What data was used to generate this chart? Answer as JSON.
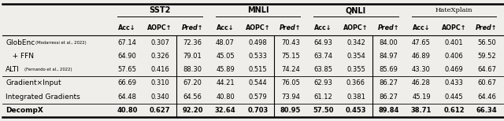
{
  "col_groups": [
    "SST2",
    "MNLI",
    "QNLI",
    "HateXplain"
  ],
  "sub_headers": [
    "Acc↓",
    "AOPC↑",
    "Pred↑"
  ],
  "rows": [
    {
      "label": "GlobEnc",
      "label_suffix": "(Modarressi et al., 2022)",
      "indent": 0,
      "bold": false,
      "values": [
        "67.14",
        "0.307",
        "72.36",
        "48.07",
        "0.498",
        "70.43",
        "64.93",
        "0.342",
        "84.00",
        "47.65",
        "0.401",
        "56.50"
      ]
    },
    {
      "label": "   + FFN",
      "label_suffix": "",
      "indent": 0,
      "bold": false,
      "values": [
        "64.90",
        "0.326",
        "79.01",
        "45.05",
        "0.533",
        "75.15",
        "63.74",
        "0.354",
        "84.97",
        "46.89",
        "0.406",
        "59.52"
      ]
    },
    {
      "label": "ALTI",
      "label_suffix": "(Fernando et al., 2022)",
      "indent": 0,
      "bold": false,
      "values": [
        "57.65",
        "0.416",
        "88.30",
        "45.89",
        "0.515",
        "74.24",
        "63.85",
        "0.355",
        "85.69",
        "43.30",
        "0.469",
        "64.67"
      ]
    },
    {
      "label": "Gradient×Input",
      "label_suffix": "",
      "indent": 0,
      "bold": false,
      "values": [
        "66.69",
        "0.310",
        "67.20",
        "44.21",
        "0.544",
        "76.05",
        "62.93",
        "0.366",
        "86.27",
        "46.28",
        "0.433",
        "60.67"
      ]
    },
    {
      "label": "Integrated Gradients",
      "label_suffix": "",
      "indent": 0,
      "bold": false,
      "values": [
        "64.48",
        "0.340",
        "64.56",
        "40.80",
        "0.579",
        "73.94",
        "61.12",
        "0.381",
        "86.27",
        "45.19",
        "0.445",
        "64.46"
      ]
    },
    {
      "label": "DecompX",
      "label_suffix": "",
      "indent": 0,
      "bold": true,
      "values": [
        "40.80",
        "0.627",
        "92.20",
        "32.64",
        "0.703",
        "80.95",
        "57.50",
        "0.453",
        "89.84",
        "38.71",
        "0.612",
        "66.34"
      ]
    }
  ],
  "separator_after_rows": [
    2,
    4
  ],
  "col_separators_after": [
    2,
    5,
    8
  ],
  "background_color": "#f0eeea",
  "text_color": "#000000"
}
